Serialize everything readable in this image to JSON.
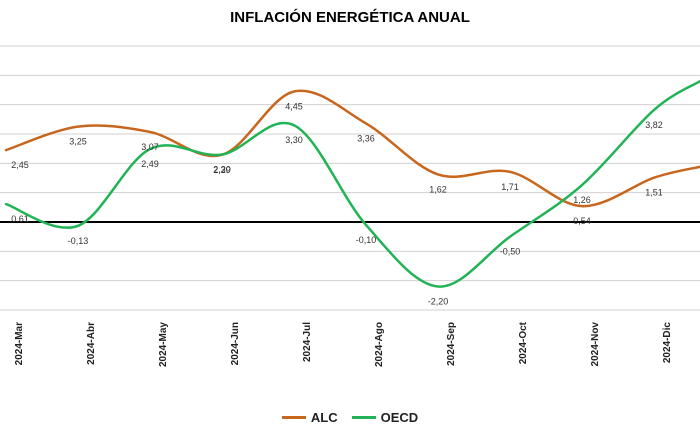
{
  "chart_data": {
    "type": "line",
    "title": "INFLACIÓN ENERGÉTICA ANUAL",
    "categories": [
      "2024-Mar",
      "2024-Abr",
      "2024-May",
      "2024-Jun",
      "2024-Jul",
      "2024-Ago",
      "2024-Sep",
      "2024-Oct",
      "2024-Nov",
      "2024-Dic"
    ],
    "series": [
      {
        "name": "ALC",
        "color": "#c8661e",
        "values": [
          2.45,
          3.25,
          3.07,
          2.29,
          4.45,
          3.36,
          1.62,
          1.71,
          0.54,
          1.51
        ],
        "labels": [
          "2,45",
          "3,25",
          "3,07",
          "2,29",
          "4,45",
          "3,36",
          "1,62",
          "1,71",
          "0,54",
          "1,51"
        ]
      },
      {
        "name": "OECD",
        "color": "#22b356",
        "values": [
          0.61,
          -0.13,
          2.49,
          2.3,
          3.3,
          -0.1,
          -2.2,
          -0.5,
          1.26,
          3.82
        ],
        "labels": [
          "0,61",
          "-0,13",
          "2,49",
          "2,30",
          "3,30",
          "-0,10",
          "-2,20",
          "-0,50",
          "1,26",
          "3,82"
        ]
      }
    ],
    "ylim": [
      -3,
      6
    ],
    "grid": true,
    "legend_position": "bottom"
  }
}
